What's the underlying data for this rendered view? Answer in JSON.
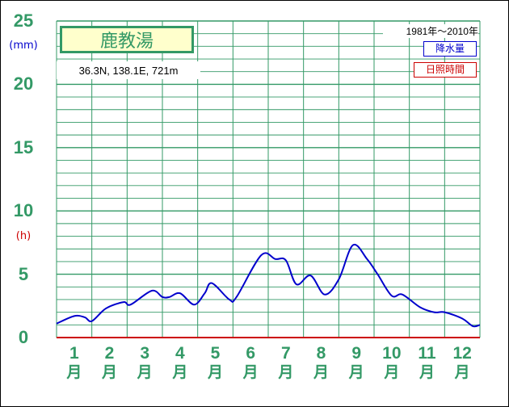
{
  "station": {
    "name": "鹿教湯",
    "coords": "36.3N,  138.1E,  721m",
    "period": "1981年〜2010年"
  },
  "legend": {
    "precipitation": "降水量",
    "sunshine": "日照時間"
  },
  "units": {
    "precipitation": "(mm)",
    "sunshine": "(h)"
  },
  "colors": {
    "grid": "#339966",
    "precipitation": "#0000cc",
    "sunshine": "#cc0000"
  },
  "chart_data": {
    "type": "line",
    "title": "鹿教湯",
    "x": [
      1,
      2,
      3,
      4,
      5,
      6,
      7,
      8,
      9,
      10,
      11,
      12
    ],
    "x_ticks": [
      "1",
      "2",
      "3",
      "4",
      "5",
      "6",
      "7",
      "8",
      "9",
      "10",
      "11",
      "12"
    ],
    "x_tick_suffix": "月",
    "y_ticks": [
      0,
      5,
      10,
      15,
      20,
      25
    ],
    "ylim": [
      0,
      25
    ],
    "xlim": [
      0.5,
      12.5
    ],
    "grid": true,
    "legend_position": "top-right",
    "series": [
      {
        "name": "降水量",
        "color": "#0000cc",
        "values": [
          1.1,
          1.7,
          1.6,
          1.3,
          2.3,
          2.8,
          2.6,
          3.7,
          3.2,
          3.2,
          3.5,
          2.6,
          3.5,
          4.3,
          3.0,
          3.2,
          6.5,
          6.2,
          6.1,
          4.2,
          4.9,
          3.4,
          4.6,
          7.3,
          6.2,
          5.0,
          3.3,
          3.4,
          2.4,
          2.0,
          2.0,
          1.5,
          0.9,
          1.0
        ],
        "x": [
          0.5,
          1.0,
          1.3,
          1.5,
          1.9,
          2.4,
          2.6,
          3.2,
          3.5,
          3.7,
          4.0,
          4.4,
          4.7,
          4.9,
          5.4,
          5.6,
          6.3,
          6.7,
          7.0,
          7.3,
          7.7,
          8.1,
          8.5,
          8.9,
          9.3,
          9.6,
          10.0,
          10.3,
          10.8,
          11.2,
          11.5,
          12.0,
          12.3,
          12.5
        ]
      }
    ]
  }
}
